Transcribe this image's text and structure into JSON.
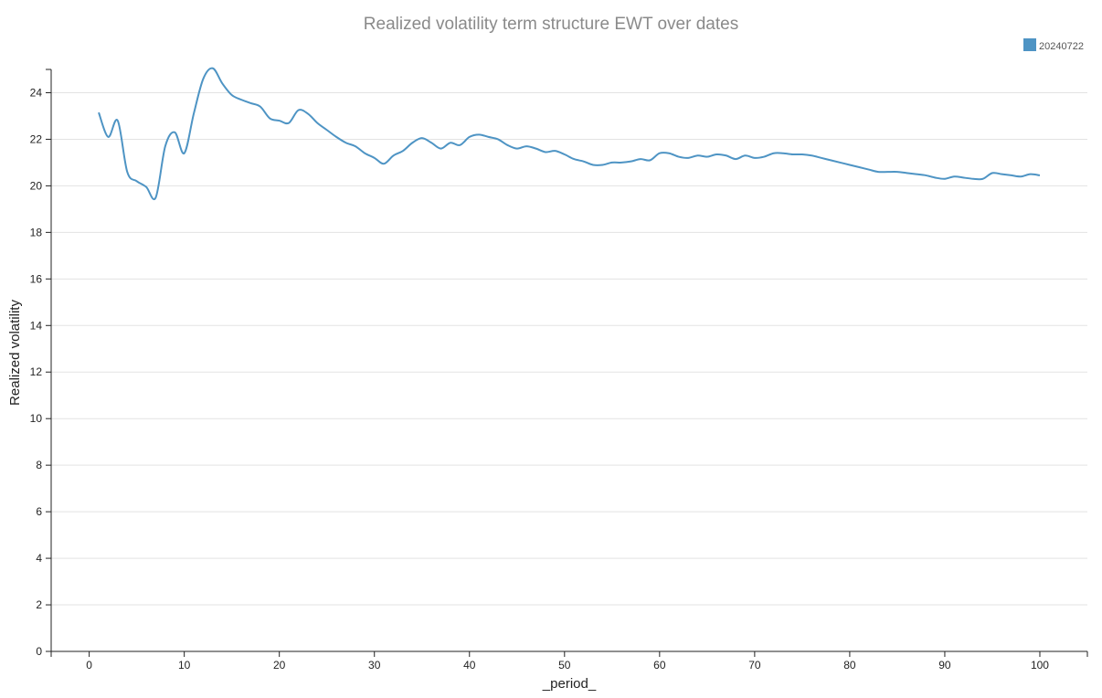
{
  "chart_data": {
    "type": "line",
    "title": "Realized volatility term structure EWT over dates",
    "xlabel": "_period_",
    "ylabel": "Realized volatility",
    "xlim": [
      -4,
      105
    ],
    "ylim": [
      0,
      25
    ],
    "xticks": [
      0,
      10,
      20,
      30,
      40,
      50,
      60,
      70,
      80,
      90,
      100
    ],
    "yticks": [
      0,
      2,
      4,
      6,
      8,
      10,
      12,
      14,
      16,
      18,
      20,
      22,
      24
    ],
    "grid": "horizontal",
    "legend_position": "top-right",
    "series": [
      {
        "name": "20240722",
        "color": "#4e94c4",
        "x": [
          1,
          2,
          3,
          4,
          5,
          6,
          7,
          8,
          9,
          10,
          11,
          12,
          13,
          14,
          15,
          16,
          17,
          18,
          19,
          20,
          21,
          22,
          23,
          24,
          25,
          26,
          27,
          28,
          29,
          30,
          31,
          32,
          33,
          34,
          35,
          36,
          37,
          38,
          39,
          40,
          41,
          42,
          43,
          44,
          45,
          46,
          47,
          48,
          49,
          50,
          51,
          52,
          53,
          54,
          55,
          56,
          57,
          58,
          59,
          60,
          61,
          62,
          63,
          64,
          65,
          66,
          67,
          68,
          69,
          70,
          71,
          72,
          73,
          74,
          75,
          76,
          77,
          78,
          79,
          80,
          81,
          82,
          83,
          84,
          85,
          86,
          87,
          88,
          89,
          90,
          91,
          92,
          93,
          94,
          95,
          96,
          97,
          98,
          99,
          100
        ],
        "y": [
          23.15,
          22.1,
          22.8,
          20.6,
          20.2,
          19.95,
          19.5,
          21.7,
          22.3,
          21.4,
          23.1,
          24.6,
          25.05,
          24.4,
          23.9,
          23.7,
          23.55,
          23.4,
          22.9,
          22.8,
          22.7,
          23.25,
          23.1,
          22.7,
          22.4,
          22.1,
          21.85,
          21.7,
          21.4,
          21.2,
          20.95,
          21.3,
          21.5,
          21.85,
          22.05,
          21.85,
          21.6,
          21.85,
          21.75,
          22.1,
          22.2,
          22.1,
          22.0,
          21.75,
          21.6,
          21.7,
          21.6,
          21.45,
          21.5,
          21.35,
          21.15,
          21.05,
          20.9,
          20.9,
          21.0,
          21.0,
          21.05,
          21.15,
          21.1,
          21.4,
          21.4,
          21.25,
          21.2,
          21.3,
          21.25,
          21.35,
          21.3,
          21.15,
          21.3,
          21.2,
          21.25,
          21.4,
          21.4,
          21.35,
          21.35,
          21.3,
          21.2,
          21.1,
          21.0,
          20.9,
          20.8,
          20.7,
          20.6,
          20.6,
          20.6,
          20.55,
          20.5,
          20.45,
          20.35,
          20.3,
          20.4,
          20.35,
          20.3,
          20.3,
          20.55,
          20.5,
          20.45,
          20.4,
          20.5,
          20.45
        ]
      }
    ]
  }
}
